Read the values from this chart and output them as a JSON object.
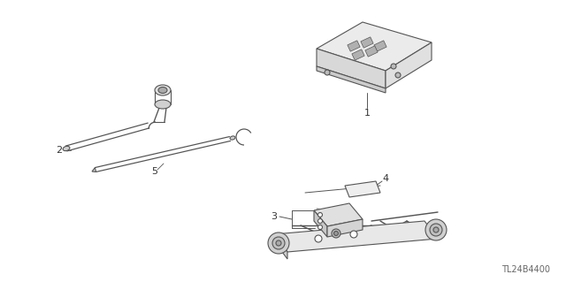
{
  "bg_color": "#ffffff",
  "line_color": "#555555",
  "label_color": "#333333",
  "diagram_code": "TL24B4400",
  "fig_width": 6.4,
  "fig_height": 3.19,
  "dpi": 100,
  "lw": 0.8
}
